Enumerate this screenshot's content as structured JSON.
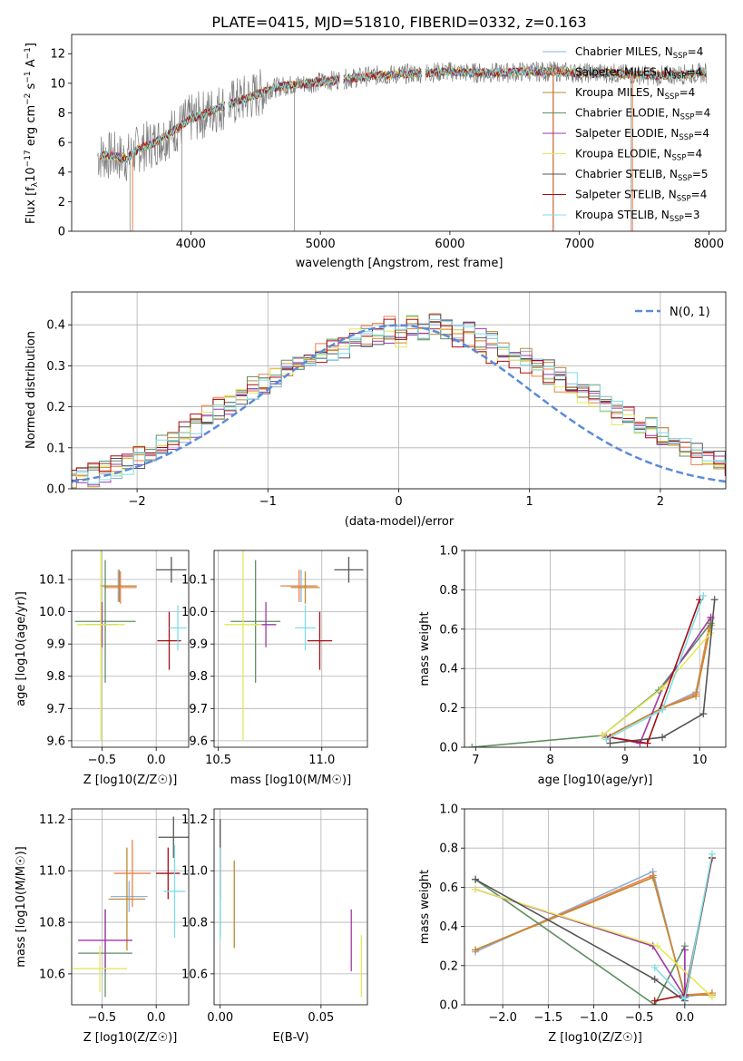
{
  "figure": {
    "title": "PLATE=0415, MJD=51810, FIBERID=0332, z=0.163"
  },
  "colors": {
    "data": "#7f7f7f",
    "series": [
      "#8fb0d8",
      "#f07f49",
      "#c08a2f",
      "#5f8f5f",
      "#9e38a8",
      "#e3e85b",
      "#555555",
      "#a50f15",
      "#7fdde8"
    ],
    "gauss": "#5b8bd9",
    "grid": "#b0b0b0"
  },
  "chart_data": [
    {
      "id": "spectrum",
      "type": "line",
      "xlabel": "wavelength [Angstrom, rest frame]",
      "ylabel": "Flux [f$_\\lambda$10$^{-17}$ erg cm$^{-2}$ s$^{-1}$ A$^{-1}$]",
      "ylabel_parts": {
        "a": "Flux [f",
        "sub_lambda": "λ",
        "b": "10",
        "sup1": "−17",
        "c": " erg cm",
        "sup2": "−2",
        "d": " s",
        "sup3": "−1",
        "e": " A",
        "sup4": "−1",
        "f": "]"
      },
      "xlim": [
        3080,
        8130
      ],
      "ylim": [
        0,
        13.3
      ],
      "xticks": [
        "4000",
        "5000",
        "6000",
        "7000",
        "8000"
      ],
      "yticks": [
        "0",
        "2",
        "4",
        "6",
        "8",
        "10",
        "12"
      ],
      "legend_position": "top-right",
      "continuum": {
        "x": [
          3300,
          3400,
          3500,
          3600,
          3700,
          3800,
          3900,
          4000,
          4100,
          4200,
          4300,
          4400,
          4500,
          4600,
          4700,
          4800,
          4900,
          5000,
          5200,
          5400,
          5600,
          5800,
          6000,
          6200,
          6400,
          6600,
          6800,
          7000,
          7200,
          7400,
          7600,
          7800,
          7980
        ],
        "y": [
          5.1,
          5.1,
          4.9,
          5.6,
          5.9,
          6.4,
          7.0,
          7.6,
          7.9,
          8.3,
          8.6,
          8.9,
          9.2,
          9.6,
          9.8,
          9.9,
          10.0,
          10.1,
          10.3,
          10.5,
          10.6,
          10.7,
          10.8,
          10.7,
          10.7,
          10.8,
          10.8,
          10.7,
          10.7,
          10.6,
          10.5,
          10.6,
          10.7
        ]
      },
      "legend": [
        {
          "label": "Chabrier MILES, N",
          "sub": "SSP",
          "suffix": "=4"
        },
        {
          "label": "Salpeter MILES, N",
          "sub": "SSP",
          "suffix": "=4"
        },
        {
          "label": "Kroupa MILES, N",
          "sub": "SSP",
          "suffix": "=4"
        },
        {
          "label": "Chabrier ELODIE, N",
          "sub": "SSP",
          "suffix": "=4"
        },
        {
          "label": "Salpeter ELODIE, N",
          "sub": "SSP",
          "suffix": "=4"
        },
        {
          "label": "Kroupa ELODIE, N",
          "sub": "SSP",
          "suffix": "=4"
        },
        {
          "label": "Chabrier STELIB, N",
          "sub": "SSP",
          "suffix": "=5"
        },
        {
          "label": "Salpeter STELIB, N",
          "sub": "SSP",
          "suffix": "=4"
        },
        {
          "label": "Kroupa STELIB, N",
          "sub": "SSP",
          "suffix": "=3"
        }
      ]
    },
    {
      "id": "residuals",
      "type": "histogram",
      "xlabel": "(data-model)/error",
      "ylabel": "Normed distribution",
      "xlim": [
        -2.5,
        2.5
      ],
      "ylim": [
        0,
        0.48
      ],
      "xticks": [
        "−2",
        "−1",
        "0",
        "1",
        "2"
      ],
      "yticks": [
        "0.0",
        "0.1",
        "0.2",
        "0.3",
        "0.4"
      ],
      "legend_position": "top-right",
      "gauss_label": "N(0, 1)",
      "bin_width": 0.1,
      "series_values": [
        [
          0.02,
          0.02,
          0.03,
          0.04,
          0.05,
          0.06,
          0.07,
          0.08,
          0.1,
          0.12,
          0.13,
          0.15,
          0.17,
          0.19,
          0.2,
          0.22,
          0.24,
          0.25,
          0.26,
          0.28,
          0.3,
          0.31,
          0.32,
          0.33,
          0.34,
          0.35,
          0.36,
          0.37,
          0.38,
          0.38,
          0.39,
          0.39,
          0.4,
          0.39,
          0.38,
          0.39,
          0.37,
          0.36,
          0.34,
          0.33,
          0.32,
          0.3,
          0.29,
          0.28,
          0.26,
          0.24,
          0.23,
          0.21,
          0.19,
          0.18,
          0.16,
          0.15,
          0.13,
          0.12,
          0.1,
          0.09,
          0.08,
          0.07,
          0.06,
          0.05
        ],
        [
          0.03,
          0.03,
          0.04,
          0.05,
          0.06,
          0.07,
          0.08,
          0.09,
          0.11,
          0.13,
          0.14,
          0.16,
          0.18,
          0.2,
          0.21,
          0.23,
          0.25,
          0.26,
          0.27,
          0.29,
          0.31,
          0.31,
          0.33,
          0.34,
          0.36,
          0.37,
          0.38,
          0.39,
          0.4,
          0.37,
          0.4,
          0.38,
          0.41,
          0.38,
          0.37,
          0.36,
          0.35,
          0.33,
          0.32,
          0.31,
          0.3,
          0.29,
          0.27,
          0.26,
          0.25,
          0.23,
          0.22,
          0.2,
          0.18,
          0.17,
          0.15,
          0.14,
          0.12,
          0.11,
          0.1,
          0.08,
          0.07,
          0.06,
          0.05,
          0.04
        ]
      ],
      "gauss": {
        "mean": 0,
        "sigma": 1
      }
    },
    {
      "id": "age_vs_Z",
      "type": "scatter",
      "xlabel": "Z [log10(Z/Z☉)]",
      "ylabel": "age [log10(age/yr)]",
      "xlim": [
        -0.78,
        0.3
      ],
      "ylim": [
        9.58,
        10.19
      ],
      "xticks": [
        "−0.5",
        "0.0"
      ],
      "yticks": [
        "9.6",
        "9.7",
        "9.8",
        "9.9",
        "10.0",
        "10.1"
      ],
      "points": [
        {
          "x": -0.35,
          "y": 10.08,
          "xerr": 0.17,
          "yerr": 0.05
        },
        {
          "x": -0.33,
          "y": 10.075,
          "xerr": 0.15,
          "yerr": 0.05
        },
        {
          "x": -0.34,
          "y": 10.08,
          "xerr": 0.16,
          "yerr": 0.05
        },
        {
          "x": -0.47,
          "y": 9.97,
          "xerr": 0.28,
          "yerr": 0.19
        },
        {
          "x": -0.5,
          "y": 9.96,
          "xerr": 0.15,
          "yerr": 0.07
        },
        {
          "x": -0.51,
          "y": 9.96,
          "xerr": 0.22,
          "yerr": 0.36
        },
        {
          "x": 0.14,
          "y": 10.13,
          "xerr": 0.14,
          "yerr": 0.04
        },
        {
          "x": 0.12,
          "y": 9.91,
          "xerr": 0.11,
          "yerr": 0.09
        },
        {
          "x": 0.2,
          "y": 9.95,
          "xerr": 0.08,
          "yerr": 0.07
        }
      ]
    },
    {
      "id": "age_vs_mass",
      "type": "scatter",
      "xlabel": "mass [log10(M/M☉)]",
      "ylabel": "",
      "xlim": [
        10.48,
        11.22
      ],
      "ylim": [
        9.58,
        10.19
      ],
      "xticks": [
        "10.5",
        "11.0"
      ],
      "yticks": [
        "9.6",
        "9.7",
        "9.8",
        "9.9",
        "10.0",
        "10.1"
      ],
      "points": [
        {
          "x": 10.9,
          "y": 10.08,
          "xerr": 0.07,
          "yerr": 0.05
        },
        {
          "x": 10.89,
          "y": 10.08,
          "xerr": 0.09,
          "yerr": 0.05
        },
        {
          "x": 10.92,
          "y": 10.075,
          "xerr": 0.07,
          "yerr": 0.05
        },
        {
          "x": 10.68,
          "y": 9.97,
          "xerr": 0.12,
          "yerr": 0.19
        },
        {
          "x": 10.73,
          "y": 9.96,
          "xerr": 0.05,
          "yerr": 0.07
        },
        {
          "x": 10.62,
          "y": 9.96,
          "xerr": 0.09,
          "yerr": 0.36
        },
        {
          "x": 11.13,
          "y": 10.13,
          "xerr": 0.07,
          "yerr": 0.04
        },
        {
          "x": 10.99,
          "y": 9.91,
          "xerr": 0.06,
          "yerr": 0.09
        },
        {
          "x": 10.92,
          "y": 9.95,
          "xerr": 0.05,
          "yerr": 0.07
        }
      ]
    },
    {
      "id": "massweight_vs_age",
      "type": "line",
      "xlabel": "age [log10(age/yr)]",
      "ylabel": "mass weight",
      "xlim": [
        6.85,
        10.35
      ],
      "ylim": [
        0,
        1.0
      ],
      "xticks": [
        "7",
        "8",
        "9",
        "10"
      ],
      "yticks": [
        "0.0",
        "0.2",
        "0.4",
        "0.6",
        "0.8",
        "1.0"
      ],
      "series": [
        {
          "x": [
            8.75,
            9.5,
            9.95,
            10.15
          ],
          "y": [
            0.05,
            0.2,
            0.28,
            0.65
          ]
        },
        {
          "x": [
            8.75,
            9.5,
            9.95,
            10.15
          ],
          "y": [
            0.05,
            0.2,
            0.27,
            0.66
          ]
        },
        {
          "x": [
            8.75,
            9.5,
            9.95,
            10.15
          ],
          "y": [
            0.05,
            0.2,
            0.26,
            0.62
          ]
        },
        {
          "x": [
            6.95,
            8.7,
            9.45,
            10.15
          ],
          "y": [
            0.0,
            0.06,
            0.29,
            0.63
          ]
        },
        {
          "x": [
            8.7,
            9.2,
            9.5,
            10.15
          ],
          "y": [
            0.06,
            0.02,
            0.3,
            0.66
          ]
        },
        {
          "x": [
            8.7,
            9.5,
            10.15
          ],
          "y": [
            0.06,
            0.3,
            0.58
          ]
        },
        {
          "x": [
            8.8,
            9.5,
            10.05,
            10.2
          ],
          "y": [
            0.02,
            0.05,
            0.17,
            0.75
          ]
        },
        {
          "x": [
            8.8,
            9.3,
            10.0
          ],
          "y": [
            0.05,
            0.02,
            0.75
          ]
        },
        {
          "x": [
            8.75,
            9.5,
            10.05
          ],
          "y": [
            0.04,
            0.19,
            0.77
          ]
        }
      ]
    },
    {
      "id": "mass_vs_Z",
      "type": "scatter",
      "xlabel": "Z [log10(Z/Z☉)]",
      "ylabel": "mass [log10(M/M☉)]",
      "xlim": [
        -0.78,
        0.3
      ],
      "ylim": [
        10.48,
        11.24
      ],
      "xticks": [
        "−0.5",
        "0.0"
      ],
      "yticks": [
        "10.6",
        "10.8",
        "11.0",
        "11.2"
      ],
      "points": [
        {
          "x": -0.25,
          "y": 10.9,
          "xerr": 0.17,
          "yerr": 0.06
        },
        {
          "x": -0.22,
          "y": 10.99,
          "xerr": 0.17,
          "yerr": 0.13
        },
        {
          "x": -0.27,
          "y": 10.89,
          "xerr": 0.17,
          "yerr": 0.2
        },
        {
          "x": -0.47,
          "y": 10.68,
          "xerr": 0.25,
          "yerr": 0.17
        },
        {
          "x": -0.47,
          "y": 10.73,
          "xerr": 0.25,
          "yerr": 0.12
        },
        {
          "x": -0.52,
          "y": 10.62,
          "xerr": 0.25,
          "yerr": 0.09
        },
        {
          "x": 0.16,
          "y": 11.13,
          "xerr": 0.14,
          "yerr": 0.08
        },
        {
          "x": 0.11,
          "y": 10.99,
          "xerr": 0.11,
          "yerr": 0.1
        },
        {
          "x": 0.17,
          "y": 10.92,
          "xerr": 0.1,
          "yerr": 0.18
        }
      ]
    },
    {
      "id": "mass_vs_ebv",
      "type": "scatter",
      "xlabel": "E(B-V)",
      "ylabel": "",
      "xlim": [
        -0.003,
        0.073
      ],
      "ylim": [
        10.48,
        11.24
      ],
      "xticks": [
        "0.00",
        "0.05"
      ],
      "yticks": [
        "10.6",
        "10.8",
        "11.0",
        "11.2"
      ],
      "points": [
        {
          "x": 0.0,
          "y": 11.12,
          "xerr": 0,
          "yerr": 0.08
        },
        {
          "x": 0.0,
          "y": 11.0,
          "xerr": 0,
          "yerr": 0.1
        },
        {
          "x": 0.007,
          "y": 10.87,
          "xerr": 0,
          "yerr": 0.17
        },
        {
          "x": 0.0,
          "y": 10.85,
          "xerr": 0,
          "yerr": 0.1
        },
        {
          "x": 0.065,
          "y": 10.73,
          "xerr": 0,
          "yerr": 0.12
        },
        {
          "x": 0.07,
          "y": 10.63,
          "xerr": 0,
          "yerr": 0.12
        },
        {
          "x": 0.0,
          "y": 11.1,
          "xerr": 0,
          "yerr": 0.1
        },
        {
          "x": 0.0,
          "y": 10.99,
          "xerr": 0,
          "yerr": 0.1
        },
        {
          "x": 0.0,
          "y": 10.91,
          "xerr": 0,
          "yerr": 0.18
        }
      ]
    },
    {
      "id": "massweight_vs_Z",
      "type": "line",
      "xlabel": "Z [log10(Z/Z☉)]",
      "ylabel": "mass weight",
      "xlim": [
        -2.42,
        0.45
      ],
      "ylim": [
        0,
        1.0
      ],
      "xticks": [
        "−2.0",
        "−1.5",
        "−1.0",
        "−0.5",
        "0.0"
      ],
      "yticks": [
        "0.0",
        "0.2",
        "0.4",
        "0.6",
        "0.8",
        "1.0"
      ],
      "series": [
        {
          "x": [
            -2.3,
            -0.35,
            0.0,
            0.3
          ],
          "y": [
            0.27,
            0.68,
            0.04,
            0.06
          ]
        },
        {
          "x": [
            -2.3,
            -0.35,
            0.0,
            0.3
          ],
          "y": [
            0.28,
            0.66,
            0.05,
            0.06
          ]
        },
        {
          "x": [
            -2.3,
            -0.35,
            0.0,
            0.3
          ],
          "y": [
            0.28,
            0.65,
            0.05,
            0.05
          ]
        },
        {
          "x": [
            -2.3,
            -0.33,
            0.0,
            0.0
          ],
          "y": [
            0.64,
            0.0,
            0.3,
            0.05
          ]
        },
        {
          "x": [
            -2.3,
            -0.35,
            0.0,
            0.0
          ],
          "y": [
            0.59,
            0.3,
            0.04,
            0.28
          ]
        },
        {
          "x": [
            -2.3,
            -0.3,
            0.3
          ],
          "y": [
            0.59,
            0.3,
            0.04
          ]
        },
        {
          "x": [
            -2.3,
            -0.33,
            0.0,
            0.3
          ],
          "y": [
            0.64,
            0.13,
            0.02,
            0.75
          ]
        },
        {
          "x": [
            -0.33,
            0.0,
            0.3
          ],
          "y": [
            0.02,
            0.05,
            0.75
          ]
        },
        {
          "x": [
            -0.33,
            0.0,
            0.3
          ],
          "y": [
            0.19,
            0.03,
            0.77
          ]
        }
      ]
    }
  ]
}
